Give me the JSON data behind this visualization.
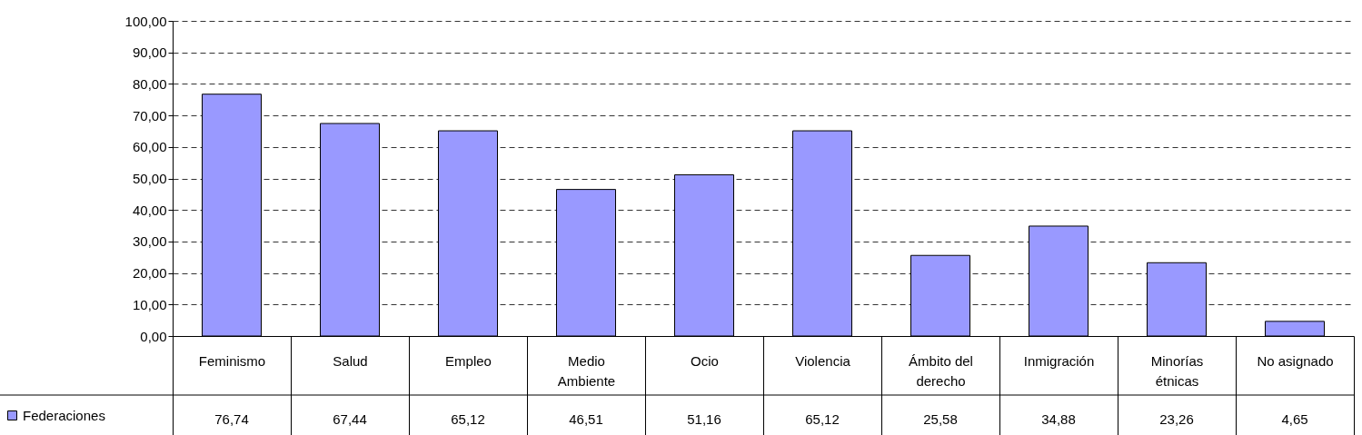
{
  "chart_data": {
    "type": "bar",
    "categories": [
      "Feminismo",
      "Salud",
      "Empleo",
      "Medio\nAmbiente",
      "Ocio",
      "Violencia",
      "Ámbito del\nderecho",
      "Inmigración",
      "Minorías\nétnicas",
      "No asignado"
    ],
    "series": [
      {
        "name": "Federaciones",
        "color": "#9999ff",
        "values": [
          76.74,
          67.44,
          65.12,
          46.51,
          51.16,
          65.12,
          25.58,
          34.88,
          23.26,
          4.65
        ],
        "value_labels": [
          "76,74",
          "67,44",
          "65,12",
          "46,51",
          "51,16",
          "65,12",
          "25,58",
          "34,88",
          "23,26",
          "4,65"
        ]
      }
    ],
    "ylim": [
      0,
      100
    ],
    "yticks": [
      {
        "value": 0,
        "label": "0,00"
      },
      {
        "value": 10,
        "label": "10,00"
      },
      {
        "value": 20,
        "label": "20,00"
      },
      {
        "value": 30,
        "label": "30,00"
      },
      {
        "value": 40,
        "label": "40,00"
      },
      {
        "value": 50,
        "label": "50,00"
      },
      {
        "value": 60,
        "label": "60,00"
      },
      {
        "value": 70,
        "label": "70,00"
      },
      {
        "value": 80,
        "label": "80,00"
      },
      {
        "value": 90,
        "label": "90,00"
      },
      {
        "value": 100,
        "label": "100,00"
      }
    ],
    "grid": "y",
    "legend": "bottom left"
  }
}
